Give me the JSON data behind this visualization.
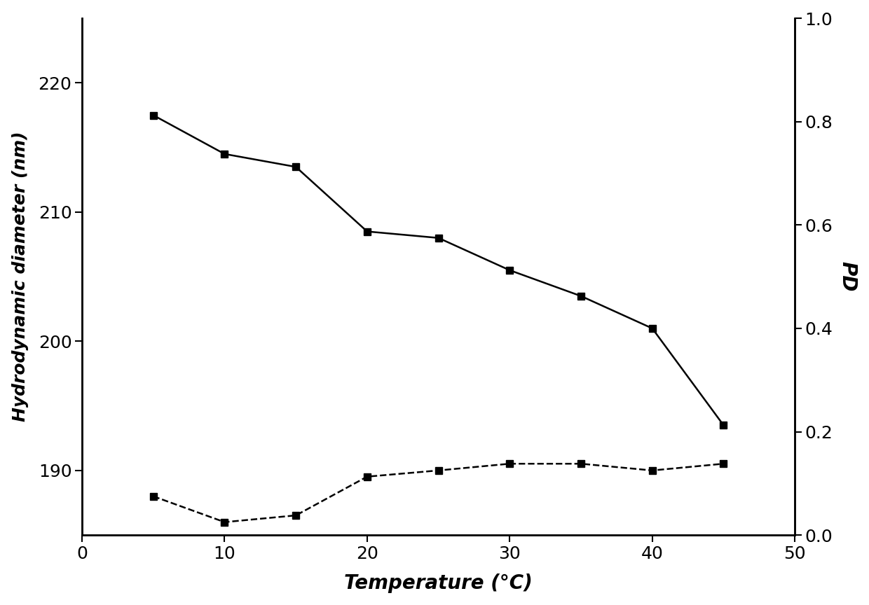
{
  "temperature": [
    5,
    10,
    15,
    20,
    25,
    30,
    35,
    40,
    45
  ],
  "diameter": [
    217.5,
    214.5,
    213.5,
    208.5,
    208.0,
    205.5,
    203.5,
    201.0,
    193.5
  ],
  "pd_values": [
    0.075,
    0.025,
    0.038,
    0.113,
    0.125,
    0.138,
    0.138,
    0.125,
    0.138
  ],
  "xlabel": "Temperature (°C)",
  "ylabel_left": "Hydrodynamic diameter (nm)",
  "ylabel_right": "PD",
  "xlim": [
    0,
    50
  ],
  "ylim_left": [
    185,
    225
  ],
  "ylim_right": [
    0.0,
    1.0
  ],
  "yticks_left": [
    190,
    200,
    210,
    220
  ],
  "yticks_right": [
    0.0,
    0.2,
    0.4,
    0.6,
    0.8,
    1.0
  ],
  "xticks": [
    0,
    10,
    20,
    30,
    40,
    50
  ],
  "background_color": "#ffffff",
  "line_color": "#000000",
  "marker": "s",
  "marker_size": 7,
  "line_width": 1.8,
  "tick_labelsize": 18,
  "xlabel_fontsize": 20,
  "ylabel_left_fontsize": 18,
  "ylabel_right_fontsize": 20
}
